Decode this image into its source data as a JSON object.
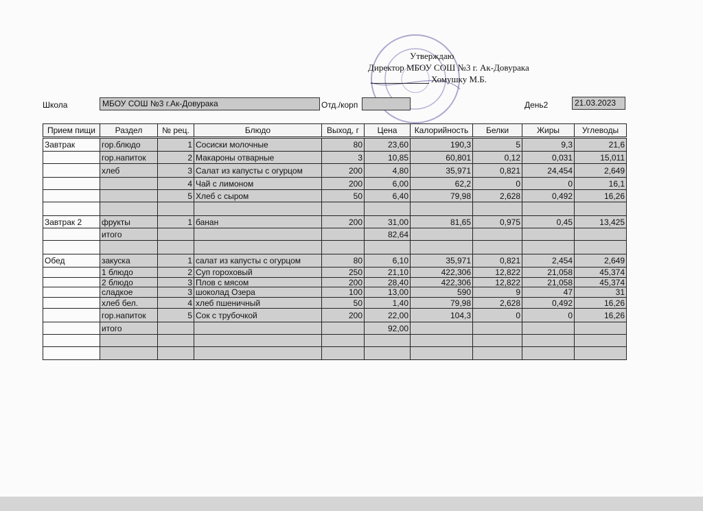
{
  "approval": {
    "title": "Утверждаю",
    "position": "Директор МБОУ СОШ №3 г. Ак-Довурака",
    "name": "Хомушку М.Б."
  },
  "header": {
    "school_label": "Школа",
    "school": "МБОУ СОШ №3 г.Ак-Довурака",
    "dept_label": "Отд./корп",
    "day_label": "День2",
    "date": "21.03.2023"
  },
  "table": {
    "columns": [
      "Прием пищи",
      "Раздел",
      "№ рец.",
      "Блюдо",
      "Выход, г",
      "Цена",
      "Калорийность",
      "Белки",
      "Жиры",
      "Углеводы"
    ],
    "rows": [
      [
        "Завтрак",
        "гор.блюдо",
        "1",
        "Сосиски молочные",
        "80",
        "23,60",
        "190,3",
        "5",
        "9,3",
        "21,6"
      ],
      [
        null,
        "гор.напиток",
        "2",
        "Макароны отварные",
        "3",
        "10,85",
        "60,801",
        "0,12",
        "0,031",
        "15,011"
      ],
      [
        null,
        "хлеб",
        "3",
        "Салат из капусты с огурцом",
        "200",
        "4,80",
        "35,971",
        "0,821",
        "24,454",
        "2,649"
      ],
      [
        null,
        null,
        "4",
        "Чай с лимоном",
        "200",
        "6,00",
        "62,2",
        "0",
        "0",
        "16,1"
      ],
      [
        null,
        null,
        "5",
        "Хлеб с сыром",
        "50",
        "6,40",
        "79,98",
        "2,628",
        "0,492",
        "16,26"
      ],
      [
        null,
        null,
        null,
        null,
        null,
        null,
        null,
        null,
        null,
        null
      ],
      [
        "Завтрак 2",
        "фрукты",
        "1",
        "банан",
        "200",
        "31,00",
        "81,65",
        "0,975",
        "0,45",
        "13,425"
      ],
      [
        null,
        "итого",
        null,
        null,
        null,
        "82,64",
        null,
        null,
        null,
        null
      ],
      [
        null,
        null,
        null,
        null,
        null,
        null,
        null,
        null,
        null,
        null
      ],
      [
        "Обед",
        "закуска",
        "1",
        "салат из капусты с огурцом",
        "80",
        "6,10",
        "35,971",
        "0,821",
        "2,454",
        "2,649"
      ],
      [
        null,
        "1 блюдо",
        "2",
        "Суп гороховый",
        "250",
        "21,10",
        "422,306",
        "12,822",
        "21,058",
        "45,374"
      ],
      [
        null,
        "2 блюдо",
        "3",
        "Плов с мясом",
        "200",
        "28,40",
        "422,306",
        "12,822",
        "21,058",
        "45,374"
      ],
      [
        null,
        "сладкое",
        "3",
        "шоколад Озера",
        "100",
        "13,00",
        "590",
        "9",
        "47",
        "31"
      ],
      [
        null,
        "хлеб бел.",
        "4",
        "хлеб пшеничный",
        "50",
        "1,40",
        "79,98",
        "2,628",
        "0,492",
        "16,26"
      ],
      [
        null,
        "гор.напиток",
        "5",
        "Сок с трубочкой",
        "200",
        "22,00",
        "104,3",
        "0",
        "0",
        "16,26"
      ],
      [
        null,
        "итого",
        null,
        null,
        null,
        "92,00",
        null,
        null,
        null,
        null
      ],
      [
        null,
        null,
        null,
        null,
        null,
        null,
        null,
        null,
        null,
        null
      ],
      [
        null,
        null,
        null,
        null,
        null,
        null,
        null,
        null,
        null,
        null
      ]
    ]
  }
}
